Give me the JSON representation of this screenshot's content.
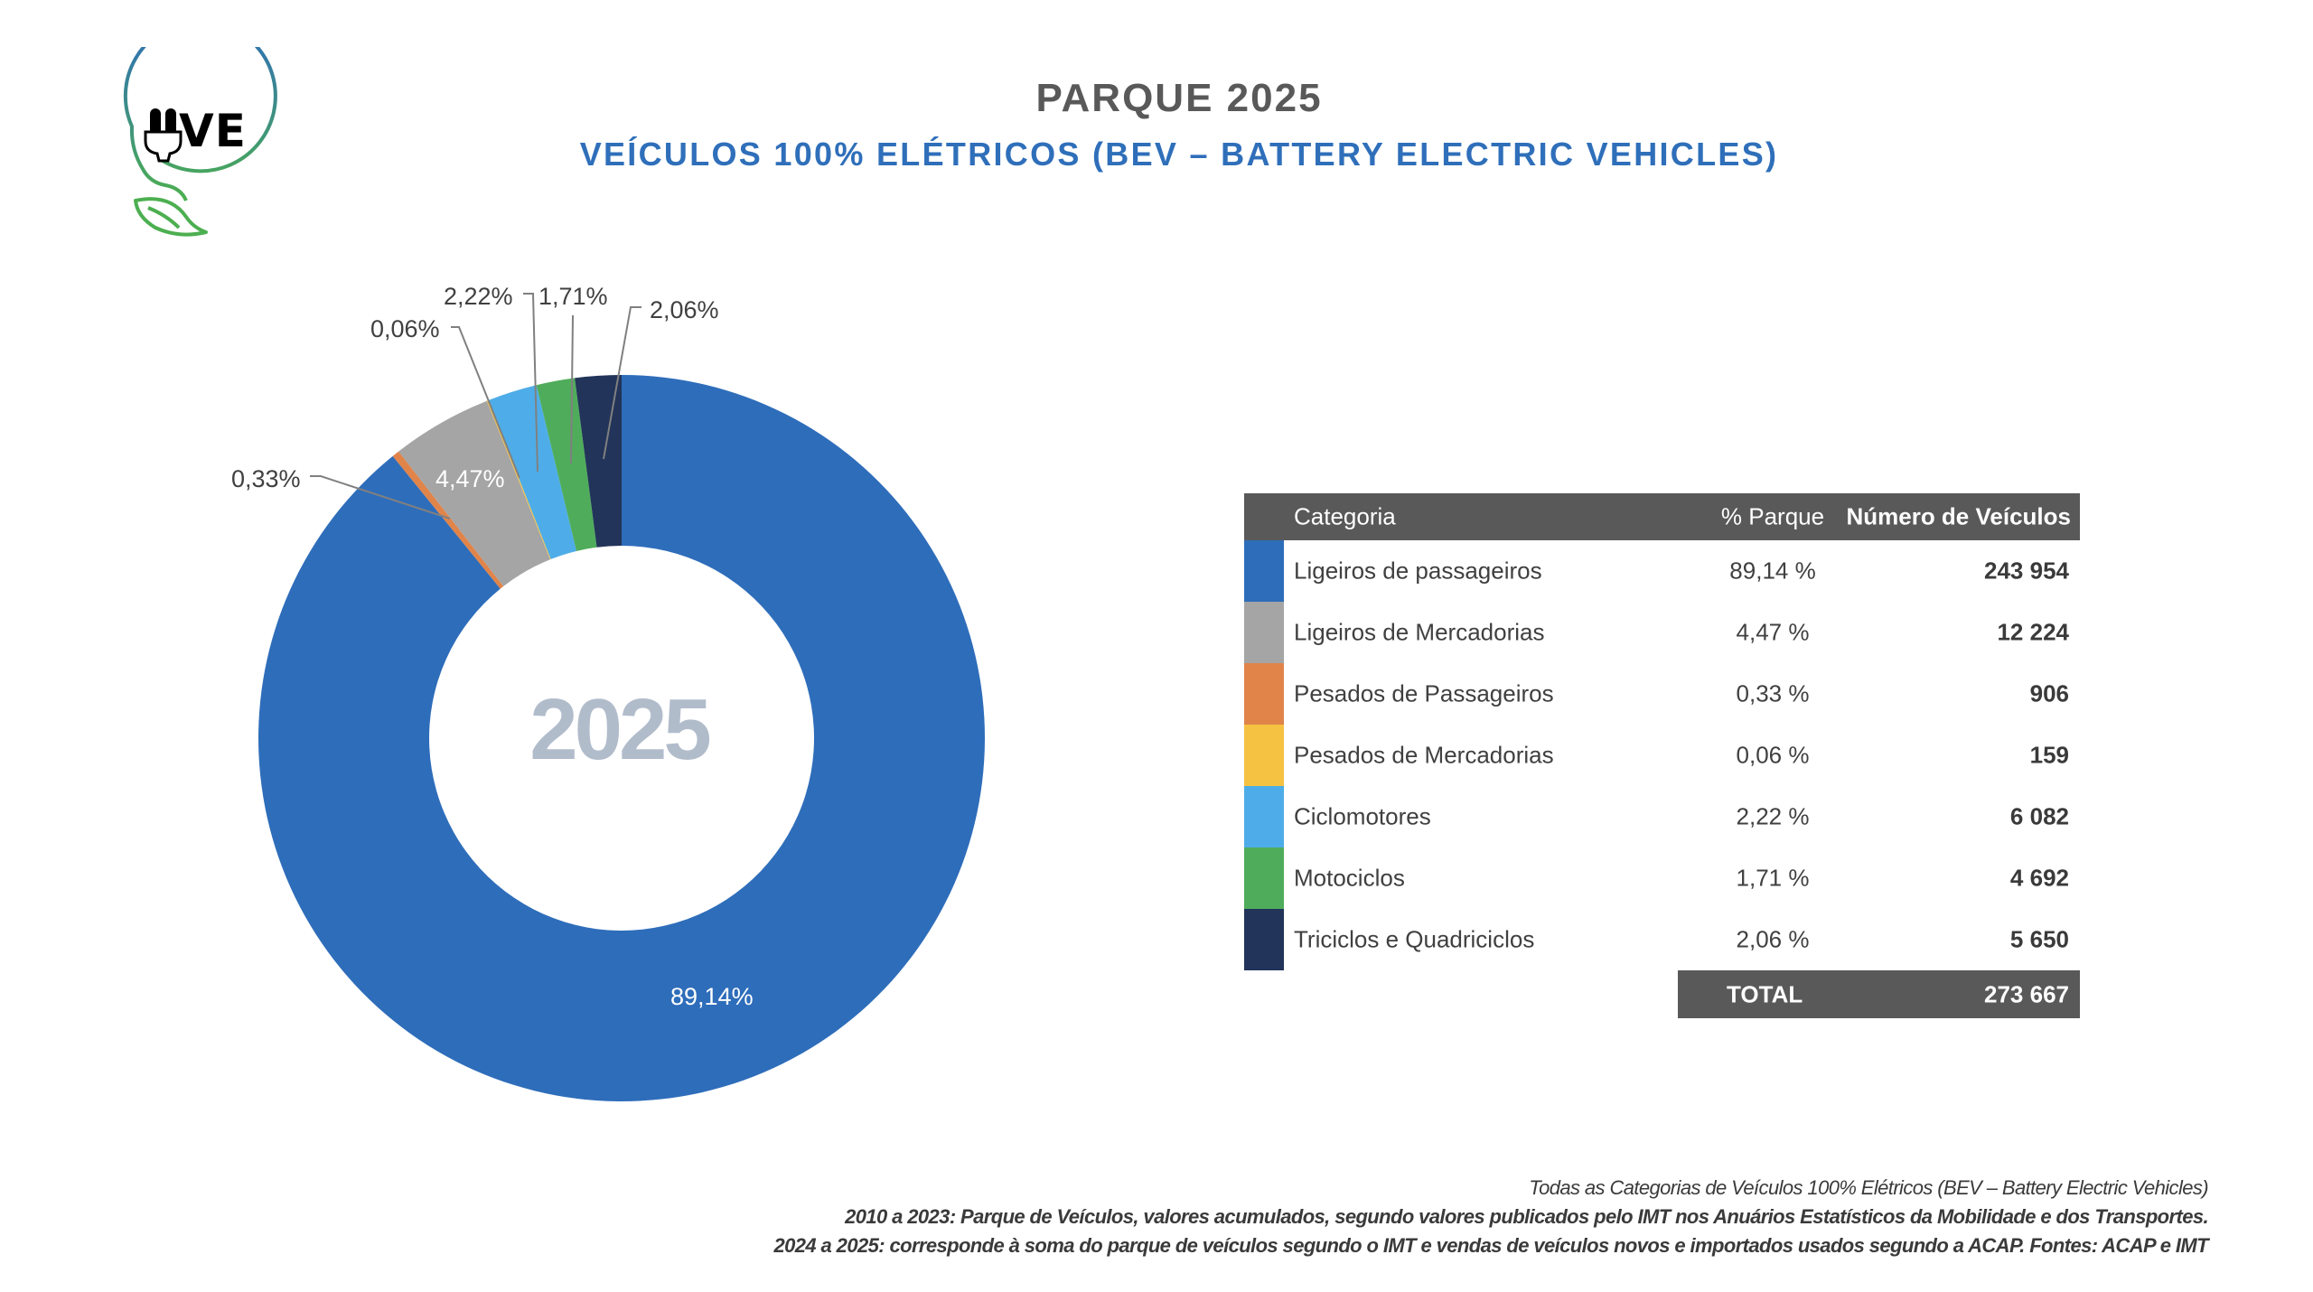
{
  "header": {
    "logo_text": "UVE",
    "title": "PARQUE 2025",
    "subtitle": "VEÍCULOS 100% ELÉTRICOS (BEV – BATTERY ELECTRIC VEHICLES)"
  },
  "colors": {
    "title": "#595959",
    "subtitle": "#2f6fba",
    "table_header_bg": "#595959"
  },
  "chart_data": {
    "type": "pie",
    "variant": "donut",
    "title": "PARQUE 2025",
    "center_label": "2025",
    "start_angle": "top",
    "direction": "clockwise",
    "categories": [
      "Ligeiros de passageiros",
      "Pesados de Passageiros",
      "Ligeiros de Mercadorias",
      "Pesados de Mercadorias",
      "Ciclomotores",
      "Motociclos",
      "Triciclos e Quadriciclos"
    ],
    "values": [
      89.14,
      0.33,
      4.47,
      0.06,
      2.22,
      1.71,
      2.06
    ],
    "data_labels": [
      "89,14%",
      "0,33%",
      "4,47%",
      "0,06%",
      "2,22%",
      "1,71%",
      "2,06%"
    ],
    "colors": [
      "#2e6dba",
      "#e0844a",
      "#a5a5a5",
      "#f5c242",
      "#4eade8",
      "#4fac5b",
      "#223459"
    ],
    "unit": "%"
  },
  "table": {
    "headers": [
      "Categoria",
      "% Parque",
      "Número de Veículos"
    ],
    "rows": [
      {
        "category": "Ligeiros de passageiros",
        "pct": "89,14 %",
        "count": "243 954",
        "color": "#2e6dba"
      },
      {
        "category": "Ligeiros de Mercadorias",
        "pct": "4,47 %",
        "count": "12 224",
        "color": "#a5a5a5"
      },
      {
        "category": "Pesados de Passageiros",
        "pct": "0,33 %",
        "count": "906",
        "color": "#e0844a"
      },
      {
        "category": "Pesados de Mercadorias",
        "pct": "0,06 %",
        "count": "159",
        "color": "#f5c242"
      },
      {
        "category": "Ciclomotores",
        "pct": "2,22 %",
        "count": "6 082",
        "color": "#4eade8"
      },
      {
        "category": "Motociclos",
        "pct": "1,71 %",
        "count": "4 692",
        "color": "#4fac5b"
      },
      {
        "category": "Triciclos e Quadriciclos",
        "pct": "2,06 %",
        "count": "5 650",
        "color": "#223459"
      }
    ],
    "total_label": "TOTAL",
    "total_value": "273 667"
  },
  "footer": {
    "line1": "Todas as Categorias de Veículos 100% Elétricos (BEV – Battery Electric Vehicles)",
    "line2": "2010 a 2023: Parque de Veículos, valores acumulados, segundo valores publicados pelo IMT nos Anuários Estatísticos da Mobilidade e dos Transportes.",
    "line3": "2024 a 2025: corresponde à soma do parque de veículos segundo o IMT e vendas de veículos novos e importados usados segundo a ACAP. Fontes: ACAP e IMT"
  }
}
